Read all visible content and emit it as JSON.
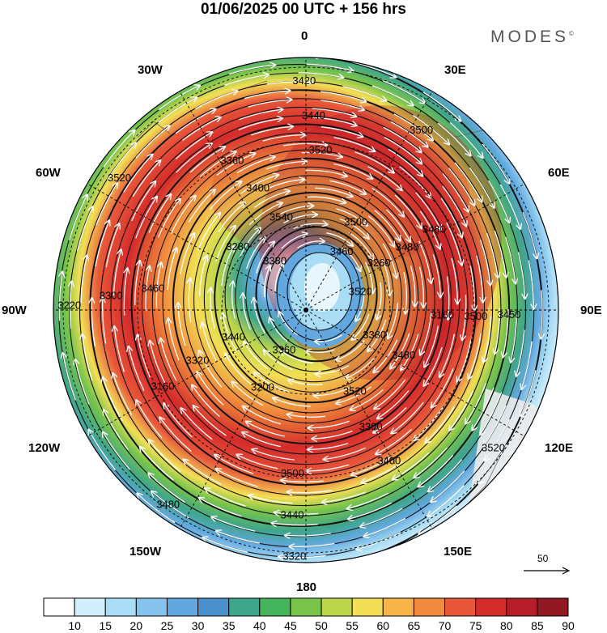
{
  "title": "01/06/2025  00 UTC  + 156 hrs",
  "brand": "MODES",
  "brand_mark": "©",
  "longitude_labels": [
    {
      "text": "0",
      "pos": "top"
    },
    {
      "text": "30E",
      "pos": "top-right"
    },
    {
      "text": "60E",
      "pos": "right-upper"
    },
    {
      "text": "90E",
      "pos": "right"
    },
    {
      "text": "120E",
      "pos": "right-lower"
    },
    {
      "text": "150E",
      "pos": "bottom-right"
    },
    {
      "text": "180",
      "pos": "bottom"
    },
    {
      "text": "150W",
      "pos": "bottom-left"
    },
    {
      "text": "120W",
      "pos": "left-lower"
    },
    {
      "text": "90W",
      "pos": "left"
    },
    {
      "text": "60W",
      "pos": "left-upper"
    },
    {
      "text": "30W",
      "pos": "top-left"
    }
  ],
  "contour_labels": [
    "3520",
    "3480",
    "3400",
    "3320",
    "3200",
    "3160",
    "3220",
    "3280",
    "3360",
    "3420",
    "3500",
    "3480",
    "3450",
    "3380",
    "3300",
    "3440",
    "3360",
    "3320",
    "3300",
    "3380",
    "3400",
    "3440",
    "3460",
    "3480",
    "3500",
    "3520",
    "3520",
    "3500",
    "3480",
    "3440",
    "3460",
    "3520",
    "3540",
    "3520",
    "3500",
    "3260",
    "3160"
  ],
  "scale": {
    "label": "50"
  },
  "colorbar": {
    "ticks": [
      "10",
      "15",
      "20",
      "25",
      "30",
      "35",
      "40",
      "45",
      "50",
      "55",
      "60",
      "65",
      "70",
      "75",
      "80",
      "85",
      "90"
    ],
    "colors": [
      "#ffffff",
      "#d4effc",
      "#a9dcf5",
      "#85c3ec",
      "#62a8de",
      "#4a8fca",
      "#3fa58a",
      "#44b55a",
      "#78c44a",
      "#bcd54a",
      "#f2df55",
      "#f7b547",
      "#f08a3c",
      "#e8573a",
      "#d42b2b",
      "#b81d2a",
      "#8f1822"
    ]
  },
  "wind_rings": [
    {
      "speed": 10,
      "color": "#ffffff"
    },
    {
      "speed": 15,
      "color": "#d4effc"
    },
    {
      "speed": 20,
      "color": "#a9dcf5"
    },
    {
      "speed": 25,
      "color": "#85c3ec"
    },
    {
      "speed": 30,
      "color": "#62a8de"
    },
    {
      "speed": 35,
      "color": "#4a8fca"
    },
    {
      "speed": 40,
      "color": "#3fa58a"
    },
    {
      "speed": 45,
      "color": "#44b55a"
    },
    {
      "speed": 50,
      "color": "#78c44a"
    },
    {
      "speed": 55,
      "color": "#bcd54a"
    },
    {
      "speed": 60,
      "color": "#f2df55"
    },
    {
      "speed": 65,
      "color": "#f7b547"
    },
    {
      "speed": 70,
      "color": "#f08a3c"
    },
    {
      "speed": 75,
      "color": "#e8573a"
    },
    {
      "speed": 80,
      "color": "#d42b2b"
    },
    {
      "speed": 85,
      "color": "#b81d2a"
    },
    {
      "speed": 90,
      "color": "#8f1822"
    }
  ]
}
